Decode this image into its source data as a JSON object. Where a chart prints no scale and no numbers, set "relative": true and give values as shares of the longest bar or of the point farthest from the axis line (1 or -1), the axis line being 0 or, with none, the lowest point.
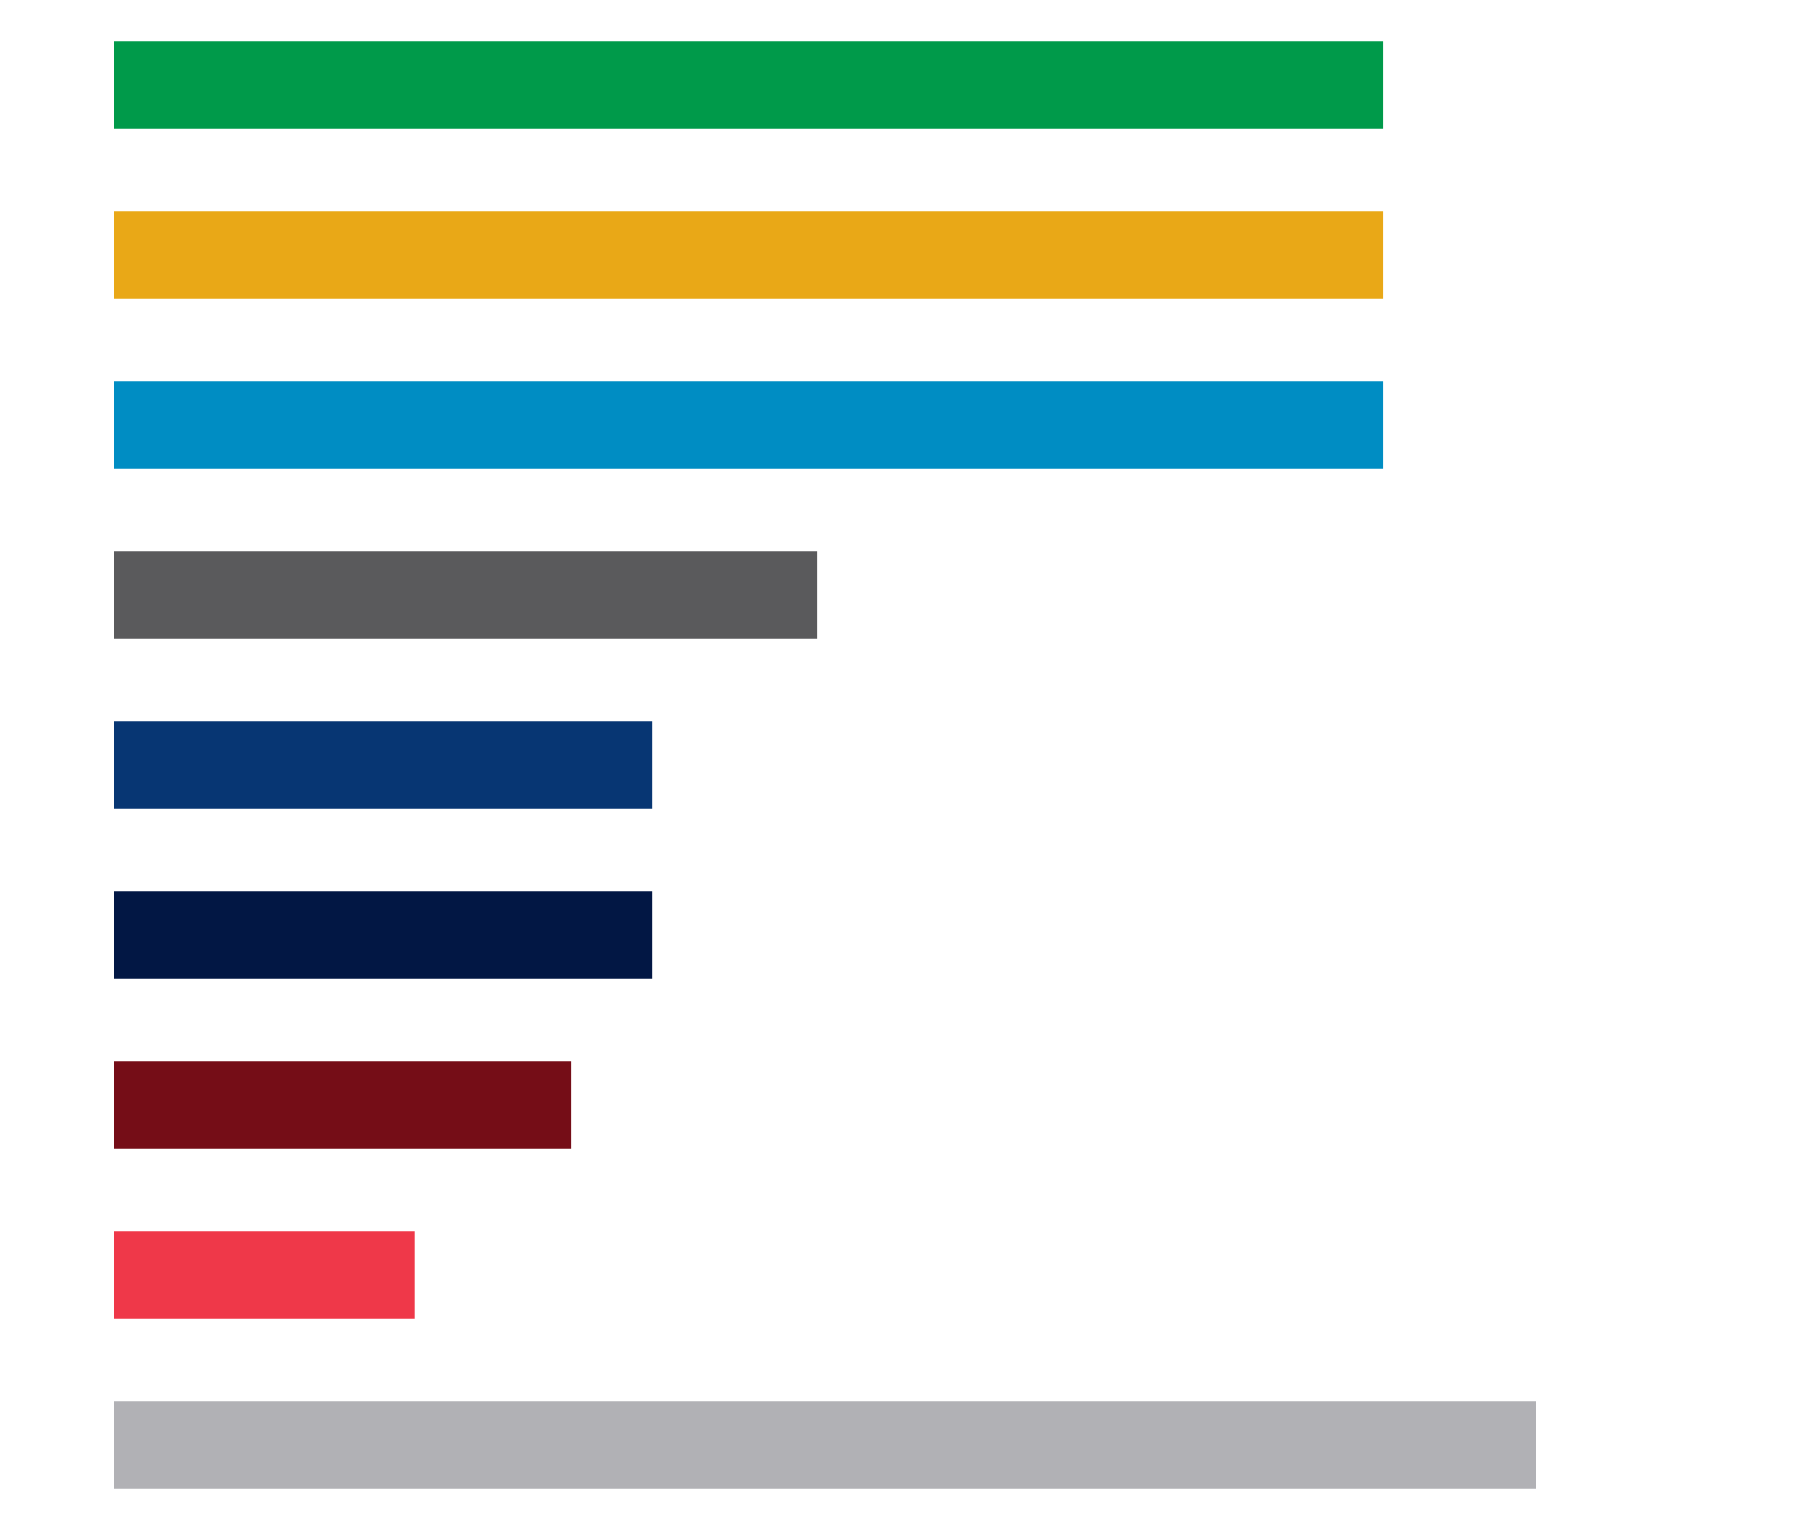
{
  "chart_data": {
    "type": "bar",
    "orientation": "horizontal",
    "relative": true,
    "categories": [
      null,
      null,
      null,
      null,
      null,
      null,
      null,
      null,
      null
    ],
    "values": [
      0.892,
      0.892,
      0.892,
      0.494,
      0.378,
      0.378,
      0.321,
      0.211,
      1
    ],
    "colors": [
      "#009a4a",
      "#e9a817",
      "#008dc3",
      "#5a5a5c",
      "#073673",
      "#021744",
      "#750d17",
      "#ef3849",
      "#b1b1b5"
    ]
  }
}
